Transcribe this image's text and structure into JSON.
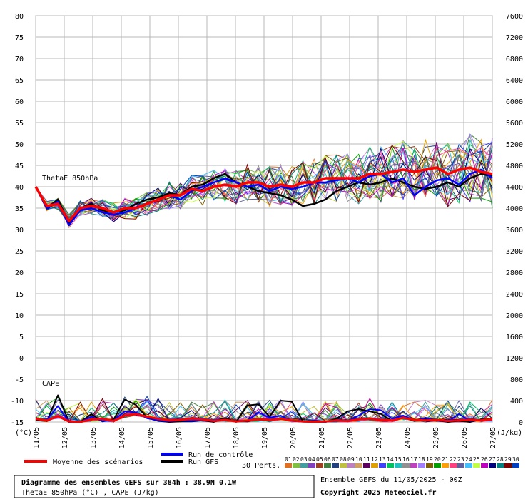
{
  "chart_data": {
    "type": "line",
    "title": "Diagramme des ensembles GEFS sur 384h : 38.9N 0.1W",
    "subtitle": "ThetaE 850hPa (°C) , CAPE (J/kg)",
    "run_info": "Ensemble GEFS du 11/05/2025 - 00Z",
    "copyright": "Copyright 2025 Meteociel.fr",
    "left_axis_unit": "(°C)",
    "right_axis_unit": "(J/kg)",
    "left_axis": {
      "min": -15,
      "max": 80,
      "ticks": [
        80,
        75,
        70,
        65,
        60,
        55,
        50,
        45,
        40,
        35,
        30,
        25,
        20,
        15,
        10,
        5,
        0,
        -5,
        -10,
        -15
      ]
    },
    "right_axis": {
      "min": 0,
      "max": 7600,
      "ticks": [
        7600,
        7200,
        6800,
        6400,
        6000,
        5600,
        5200,
        4800,
        4400,
        4000,
        3600,
        3200,
        2800,
        2400,
        2000,
        1600,
        1200,
        800,
        400,
        0
      ]
    },
    "x_labels": [
      "11/05",
      "12/05",
      "13/05",
      "14/05",
      "15/05",
      "16/05",
      "17/05",
      "18/05",
      "19/05",
      "20/05",
      "21/05",
      "22/05",
      "23/05",
      "24/05",
      "25/05",
      "26/05",
      "27/05"
    ],
    "panel_labels": {
      "thetae": "ThetaE 850hPa",
      "cape": "CAPE"
    },
    "legend": {
      "mean": "Moyenne des scénarios",
      "control": "Run de contrôle",
      "gfs": "Run GFS",
      "perts_label": "30 Perts.",
      "pert_numbers": [
        "01",
        "02",
        "03",
        "04",
        "05",
        "06",
        "07",
        "08",
        "09",
        "10",
        "11",
        "12",
        "13",
        "14",
        "15",
        "16",
        "17",
        "18",
        "19",
        "20",
        "21",
        "22",
        "23",
        "24",
        "25",
        "26",
        "27",
        "28",
        "29",
        "30"
      ]
    },
    "colors": {
      "mean": "#ff0000",
      "control": "#0000ff",
      "gfs": "#000000",
      "perts": [
        "#e07020",
        "#80c040",
        "#40a0a0",
        "#8040c0",
        "#a04020",
        "#408040",
        "#204080",
        "#c0c040",
        "#c080c0",
        "#d0a060",
        "#600060",
        "#e0a000",
        "#4040ff",
        "#00c060",
        "#20c0c0",
        "#909090",
        "#c040c0",
        "#a080ff",
        "#806000",
        "#00a000",
        "#ffa000",
        "#ff4080",
        "#6060a0",
        "#40c0ff",
        "#c0ff40",
        "#c000c0",
        "#000080",
        "#008080",
        "#800000",
        "#0040c0"
      ]
    },
    "thetae_mean": [
      40,
      35.5,
      36,
      32,
      35,
      35.5,
      35,
      34,
      35,
      35,
      36,
      37,
      38,
      38,
      39.5,
      39,
      40,
      40.5,
      40,
      41,
      41,
      40,
      40.5,
      40,
      41,
      41,
      42,
      42,
      42,
      42,
      43,
      43,
      43.5,
      44,
      43.5,
      44,
      44.5,
      43,
      44,
      44.5,
      43.5,
      43
    ],
    "thetae_control": [
      40,
      35,
      36.5,
      31,
      34.5,
      35,
      34,
      33.5,
      34,
      35,
      36,
      37,
      38,
      37,
      39,
      40,
      41,
      42,
      41,
      40,
      40.5,
      39,
      40,
      39.5,
      40,
      41,
      41,
      41.5,
      42,
      41,
      42.5,
      43,
      41,
      42,
      38,
      40,
      41.5,
      42,
      40.5,
      43,
      44,
      42
    ],
    "thetae_gfs": [
      40,
      35,
      37,
      31.5,
      35,
      36,
      34.5,
      34,
      34.5,
      36,
      37,
      37.5,
      38.5,
      38,
      40,
      40.5,
      42,
      43,
      41,
      40,
      39,
      38.5,
      38,
      37,
      35.5,
      36,
      37,
      39,
      40,
      41,
      40.5,
      41,
      42,
      41,
      40,
      39.5,
      40,
      41,
      40,
      42,
      43,
      42.5
    ],
    "cape_mean": [
      60,
      30,
      110,
      10,
      0,
      50,
      60,
      20,
      120,
      150,
      100,
      60,
      30,
      40,
      60,
      50,
      20,
      40,
      10,
      30,
      50,
      40,
      60,
      30,
      10,
      5,
      10,
      30,
      20,
      50,
      60,
      40,
      30,
      80,
      40,
      30,
      40,
      20,
      30,
      40,
      30,
      50
    ],
    "cape_control": [
      50,
      40,
      300,
      0,
      0,
      100,
      20,
      30,
      200,
      180,
      70,
      30,
      10,
      30,
      20,
      40,
      10,
      50,
      10,
      20,
      180,
      80,
      120,
      20,
      5,
      0,
      0,
      40,
      20,
      120,
      240,
      220,
      60,
      120,
      30,
      80,
      30,
      10,
      150,
      20,
      40,
      40
    ],
    "cape_gfs": [
      30,
      20,
      500,
      0,
      0,
      150,
      10,
      50,
      420,
      320,
      80,
      20,
      0,
      10,
      10,
      30,
      0,
      80,
      0,
      310,
      330,
      100,
      400,
      380,
      10,
      0,
      0,
      60,
      200,
      240,
      200,
      150,
      20,
      90,
      20,
      60,
      30,
      0,
      20,
      0,
      50,
      50
    ]
  }
}
